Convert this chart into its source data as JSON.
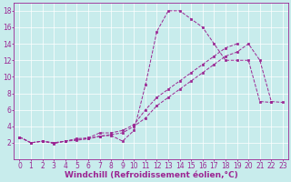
{
  "xlabel": "Windchill (Refroidissement éolien,°C)",
  "bg_color": "#c8ecec",
  "line_color": "#9b2693",
  "xlim": [
    -0.5,
    23.5
  ],
  "ylim": [
    0,
    19
  ],
  "xticks": [
    0,
    1,
    2,
    3,
    4,
    5,
    6,
    7,
    8,
    9,
    10,
    11,
    12,
    13,
    14,
    15,
    16,
    17,
    18,
    19,
    20,
    21,
    22,
    23
  ],
  "yticks": [
    2,
    4,
    6,
    8,
    10,
    12,
    14,
    16,
    18
  ],
  "series1_x": [
    0,
    1,
    2,
    3,
    4,
    5,
    6,
    7,
    8,
    9,
    10,
    11,
    12,
    13,
    14,
    15,
    16,
    17,
    18,
    19,
    20,
    21,
    22
  ],
  "series1_y": [
    2.7,
    2.0,
    2.2,
    1.9,
    2.2,
    2.3,
    2.5,
    2.8,
    2.9,
    2.2,
    3.5,
    9.0,
    15.5,
    18.0,
    18.0,
    17.0,
    16.0,
    14.0,
    12.0,
    12.0,
    12.0,
    7.0,
    6.9
  ],
  "series2_x": [
    0,
    1,
    2,
    3,
    4,
    5,
    6,
    7,
    8,
    9,
    10,
    11,
    12,
    13,
    14,
    15,
    16,
    17,
    18,
    19
  ],
  "series2_y": [
    2.7,
    2.0,
    2.2,
    2.0,
    2.2,
    2.5,
    2.6,
    3.2,
    3.2,
    3.5,
    4.2,
    6.0,
    7.5,
    8.5,
    9.5,
    10.5,
    11.5,
    12.5,
    13.5,
    14.0
  ],
  "series3_x": [
    0,
    1,
    2,
    3,
    4,
    5,
    6,
    7,
    8,
    9,
    10,
    11,
    12,
    13,
    14,
    15,
    16,
    17,
    18,
    19,
    20,
    21,
    22,
    23
  ],
  "series3_y": [
    2.7,
    2.0,
    2.2,
    2.0,
    2.2,
    2.4,
    2.5,
    2.8,
    3.0,
    3.2,
    4.0,
    5.0,
    6.5,
    7.5,
    8.5,
    9.5,
    10.5,
    11.5,
    12.5,
    13.0,
    14.0,
    12.0,
    7.0,
    6.9
  ],
  "grid_color": "#ffffff",
  "tick_label_fontsize": 5.5,
  "xlabel_fontsize": 6.5
}
